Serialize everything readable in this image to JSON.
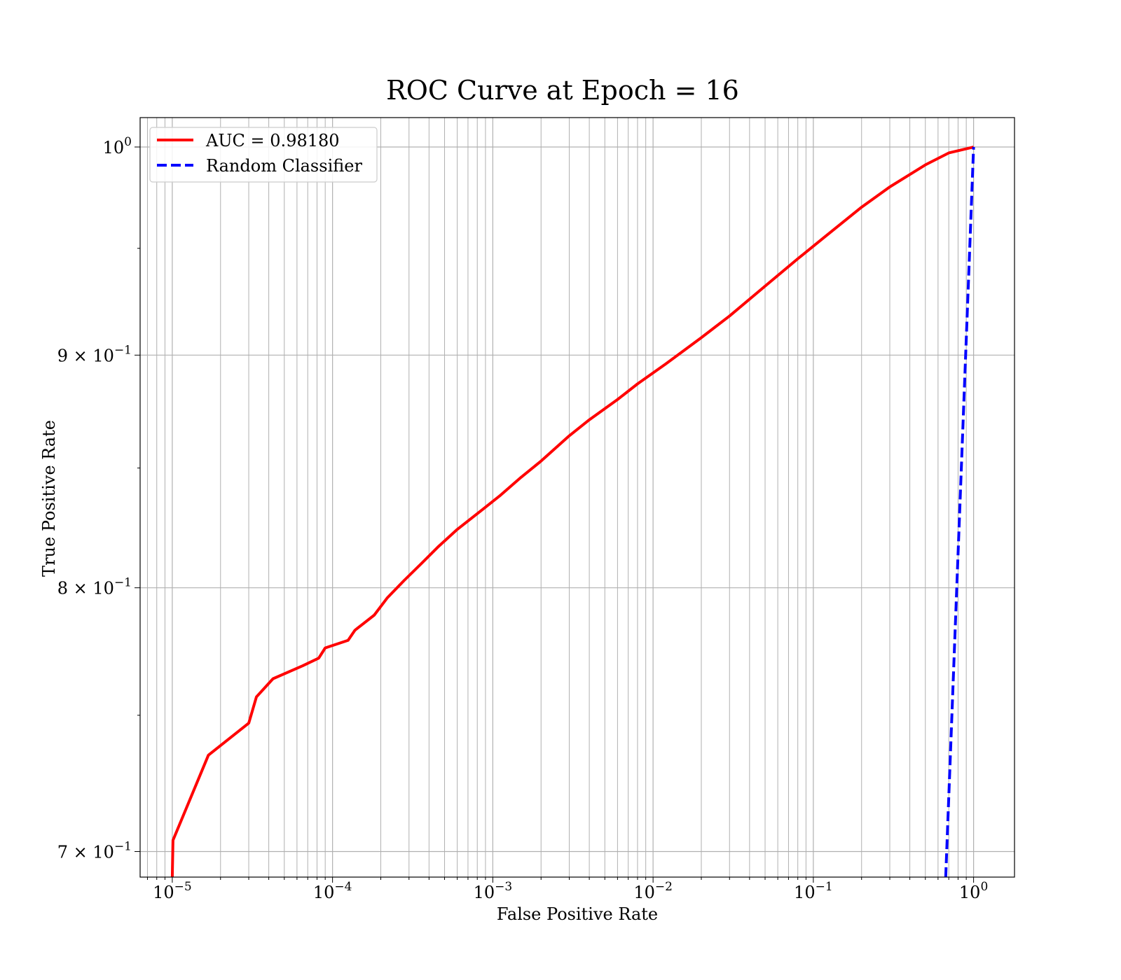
{
  "chart_data": {
    "type": "line",
    "title": "ROC Curve at Epoch = 16",
    "xlabel": "False Positive Rate",
    "ylabel": "True Positive Rate",
    "xscale": "log",
    "yscale": "log",
    "xlim": [
      6.3e-06,
      1.8
    ],
    "ylim": [
      0.691,
      1.015
    ],
    "grid": true,
    "grid_minor": true,
    "legend_position": "top-left",
    "x_ticks": [
      {
        "value": 1e-05,
        "base": "10",
        "exp": "−5"
      },
      {
        "value": 0.0001,
        "base": "10",
        "exp": "−4"
      },
      {
        "value": 0.001,
        "base": "10",
        "exp": "−3"
      },
      {
        "value": 0.01,
        "base": "10",
        "exp": "−2"
      },
      {
        "value": 0.1,
        "base": "10",
        "exp": "−1"
      },
      {
        "value": 1,
        "base": "10",
        "exp": "0"
      }
    ],
    "y_ticks": [
      {
        "value": 0.7,
        "base": "7 × 10",
        "exp": "−1"
      },
      {
        "value": 0.8,
        "base": "8 × 10",
        "exp": "−1"
      },
      {
        "value": 0.9,
        "base": "9 × 10",
        "exp": "−1"
      },
      {
        "value": 1.0,
        "base": "10",
        "exp": "0"
      }
    ],
    "series": [
      {
        "name": "AUC = 0.98180",
        "color": "#ff0000",
        "style": "solid",
        "x": [
          1e-05,
          1.01e-05,
          1.68e-05,
          3e-05,
          3.35e-05,
          4.25e-05,
          6.5e-05,
          8.2e-05,
          9e-05,
          0.000125,
          0.000138,
          0.000182,
          0.00022,
          0.00028,
          0.00036,
          0.00046,
          0.0006,
          0.00085,
          0.0011,
          0.0015,
          0.002,
          0.003,
          0.004,
          0.006,
          0.008,
          0.012,
          0.02,
          0.03,
          0.05,
          0.08,
          0.12,
          0.2,
          0.3,
          0.5,
          0.7,
          1.0
        ],
        "y": [
          0.691,
          0.704,
          0.735,
          0.747,
          0.757,
          0.764,
          0.769,
          0.772,
          0.776,
          0.779,
          0.783,
          0.789,
          0.796,
          0.803,
          0.81,
          0.817,
          0.824,
          0.832,
          0.838,
          0.846,
          0.853,
          0.864,
          0.871,
          0.88,
          0.887,
          0.896,
          0.908,
          0.918,
          0.932,
          0.945,
          0.956,
          0.97,
          0.98,
          0.991,
          0.997,
          1.0
        ]
      },
      {
        "name": "Random Classifier",
        "color": "#0000ff",
        "style": "dashed",
        "x": [
          0.67,
          1.0
        ],
        "y": [
          0.691,
          1.0
        ]
      }
    ]
  }
}
